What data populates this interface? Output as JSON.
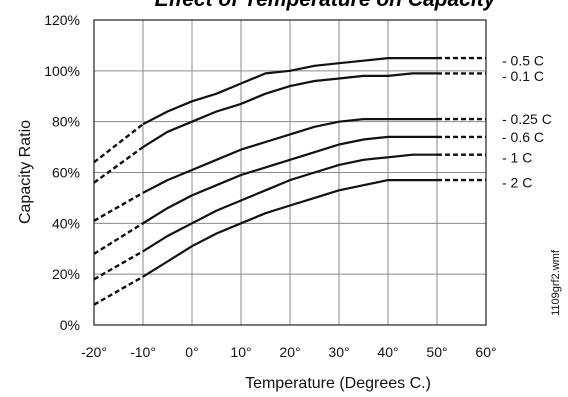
{
  "chart_data": {
    "type": "line",
    "title": "Effect of Temperature on Capacity",
    "xlabel": "Temperature (Degrees C.)",
    "ylabel": "Capacity Ratio",
    "x_ticks": [
      "-20°",
      "-10°",
      "0°",
      "10°",
      "20°",
      "30°",
      "40°",
      "50°",
      "60°"
    ],
    "y_ticks": [
      "0%",
      "20%",
      "40%",
      "60%",
      "80%",
      "100%",
      "120%"
    ],
    "xlim": [
      -20,
      60
    ],
    "ylim": [
      0,
      120
    ],
    "grid": true,
    "side_code": "1109grf2.wmf",
    "series": [
      {
        "name": "0.5 C",
        "solid": [
          [
            -10,
            79
          ],
          [
            -5,
            84
          ],
          [
            0,
            88
          ],
          [
            5,
            91
          ],
          [
            10,
            95
          ],
          [
            15,
            99
          ],
          [
            20,
            100
          ],
          [
            25,
            102
          ],
          [
            30,
            103
          ],
          [
            35,
            104
          ],
          [
            40,
            105
          ],
          [
            45,
            105
          ],
          [
            50,
            105
          ]
        ],
        "dashed_start": [
          [
            -20,
            64
          ],
          [
            -10,
            79
          ]
        ],
        "dashed_end": [
          [
            50,
            105
          ],
          [
            60,
            105
          ]
        ],
        "label_y": 104
      },
      {
        "name": "0.1 C",
        "solid": [
          [
            -10,
            70
          ],
          [
            -5,
            76
          ],
          [
            0,
            80
          ],
          [
            5,
            84
          ],
          [
            10,
            87
          ],
          [
            15,
            91
          ],
          [
            20,
            94
          ],
          [
            25,
            96
          ],
          [
            30,
            97
          ],
          [
            35,
            98
          ],
          [
            40,
            98
          ],
          [
            45,
            99
          ],
          [
            50,
            99
          ]
        ],
        "dashed_start": [
          [
            -20,
            56
          ],
          [
            -10,
            70
          ]
        ],
        "dashed_end": [
          [
            50,
            99
          ],
          [
            60,
            99
          ]
        ],
        "label_y": 98
      },
      {
        "name": "0.25 C",
        "solid": [
          [
            -10,
            52
          ],
          [
            -5,
            57
          ],
          [
            0,
            61
          ],
          [
            5,
            65
          ],
          [
            10,
            69
          ],
          [
            15,
            72
          ],
          [
            20,
            75
          ],
          [
            25,
            78
          ],
          [
            30,
            80
          ],
          [
            35,
            81
          ],
          [
            40,
            81
          ],
          [
            45,
            81
          ],
          [
            50,
            81
          ]
        ],
        "dashed_start": [
          [
            -20,
            41
          ],
          [
            -10,
            52
          ]
        ],
        "dashed_end": [
          [
            50,
            81
          ],
          [
            60,
            81
          ]
        ],
        "label_y": 81
      },
      {
        "name": "0.6 C",
        "solid": [
          [
            -10,
            40
          ],
          [
            -5,
            46
          ],
          [
            0,
            51
          ],
          [
            5,
            55
          ],
          [
            10,
            59
          ],
          [
            15,
            62
          ],
          [
            20,
            65
          ],
          [
            25,
            68
          ],
          [
            30,
            71
          ],
          [
            35,
            73
          ],
          [
            40,
            74
          ],
          [
            45,
            74
          ],
          [
            50,
            74
          ]
        ],
        "dashed_start": [
          [
            -20,
            28
          ],
          [
            -10,
            40
          ]
        ],
        "dashed_end": [
          [
            50,
            74
          ],
          [
            60,
            74
          ]
        ],
        "label_y": 74
      },
      {
        "name": "1 C",
        "solid": [
          [
            -10,
            29
          ],
          [
            -5,
            35
          ],
          [
            0,
            40
          ],
          [
            5,
            45
          ],
          [
            10,
            49
          ],
          [
            15,
            53
          ],
          [
            20,
            57
          ],
          [
            25,
            60
          ],
          [
            30,
            63
          ],
          [
            35,
            65
          ],
          [
            40,
            66
          ],
          [
            45,
            67
          ],
          [
            50,
            67
          ]
        ],
        "dashed_start": [
          [
            -20,
            18
          ],
          [
            -10,
            29
          ]
        ],
        "dashed_end": [
          [
            50,
            67
          ],
          [
            60,
            67
          ]
        ],
        "label_y": 66
      },
      {
        "name": "2 C",
        "solid": [
          [
            -10,
            19
          ],
          [
            -5,
            25
          ],
          [
            0,
            31
          ],
          [
            5,
            36
          ],
          [
            10,
            40
          ],
          [
            15,
            44
          ],
          [
            20,
            47
          ],
          [
            25,
            50
          ],
          [
            30,
            53
          ],
          [
            35,
            55
          ],
          [
            40,
            57
          ],
          [
            45,
            57
          ],
          [
            50,
            57
          ]
        ],
        "dashed_start": [
          [
            -20,
            8
          ],
          [
            -10,
            19
          ]
        ],
        "dashed_end": [
          [
            50,
            57
          ],
          [
            60,
            57
          ]
        ],
        "label_y": 56
      }
    ]
  }
}
